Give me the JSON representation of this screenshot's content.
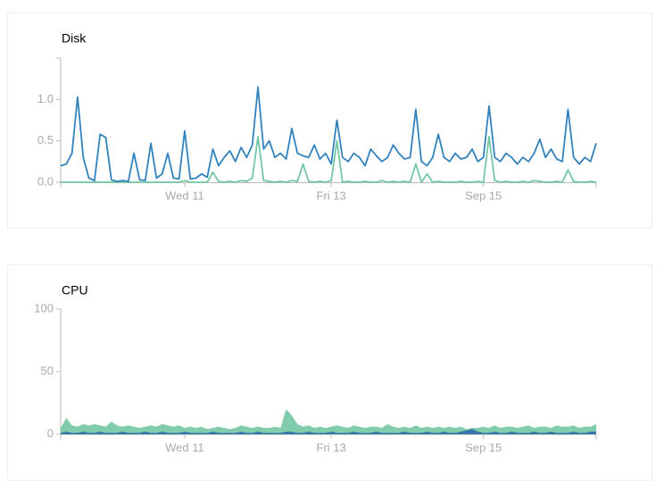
{
  "chart_data": [
    {
      "type": "line",
      "title": "Disk",
      "categories": [
        null,
        null,
        null,
        null,
        null,
        null,
        null,
        null,
        null,
        null,
        null,
        null,
        null,
        null,
        null,
        null,
        null,
        null,
        null,
        null,
        null,
        null,
        "Wed 11",
        null,
        null,
        null,
        null,
        null,
        null,
        null,
        null,
        null,
        null,
        null,
        null,
        null,
        null,
        null,
        null,
        null,
        null,
        null,
        null,
        null,
        null,
        null,
        null,
        null,
        "Fri 13",
        null,
        null,
        null,
        null,
        null,
        null,
        null,
        null,
        null,
        null,
        null,
        null,
        null,
        null,
        null,
        null,
        null,
        null,
        null,
        null,
        null,
        null,
        null,
        null,
        null,
        null,
        "Sep 15",
        null,
        null,
        null,
        null,
        null,
        null,
        null,
        null,
        null,
        null,
        null,
        null,
        null,
        null,
        null,
        null,
        null,
        null,
        null,
        null
      ],
      "series": [
        {
          "color": "#3182bd",
          "values": [
            0.2,
            0.22,
            0.35,
            1.03,
            0.3,
            0.05,
            0.02,
            0.58,
            0.54,
            0.03,
            0.01,
            0.02,
            0.01,
            0.35,
            0.03,
            0.02,
            0.47,
            0.05,
            0.1,
            0.35,
            0.05,
            0.04,
            0.62,
            0.04,
            0.05,
            0.1,
            0.06,
            0.4,
            0.2,
            0.3,
            0.38,
            0.25,
            0.42,
            0.3,
            0.45,
            1.15,
            0.4,
            0.5,
            0.3,
            0.35,
            0.28,
            0.65,
            0.35,
            0.32,
            0.3,
            0.45,
            0.28,
            0.35,
            0.22,
            0.75,
            0.3,
            0.25,
            0.35,
            0.3,
            0.2,
            0.4,
            0.32,
            0.25,
            0.3,
            0.45,
            0.35,
            0.28,
            0.3,
            0.88,
            0.25,
            0.2,
            0.3,
            0.58,
            0.3,
            0.25,
            0.35,
            0.28,
            0.3,
            0.4,
            0.25,
            0.3,
            0.92,
            0.3,
            0.25,
            0.35,
            0.3,
            0.22,
            0.3,
            0.25,
            0.35,
            0.52,
            0.3,
            0.4,
            0.28,
            0.25,
            0.88,
            0.3,
            0.22,
            0.3,
            0.25,
            0.47
          ]
        },
        {
          "color": "#74c7a5",
          "values": [
            0,
            0,
            0,
            0,
            0,
            0,
            0,
            0,
            0,
            0,
            0,
            0,
            0,
            0,
            0,
            0,
            0,
            0,
            0,
            0,
            0,
            0,
            0.02,
            0,
            0,
            0,
            0,
            0.12,
            0.01,
            0,
            0.01,
            0,
            0.02,
            0.01,
            0.05,
            0.55,
            0.02,
            0.01,
            0,
            0.01,
            0,
            0.02,
            0.01,
            0.22,
            0.01,
            0,
            0.01,
            0,
            0.02,
            0.5,
            0,
            0.01,
            0,
            0,
            0.01,
            0,
            0,
            0.02,
            0,
            0.01,
            0,
            0.01,
            0,
            0.22,
            0,
            0.1,
            0,
            0.01,
            0,
            0,
            0,
            0.01,
            0,
            0,
            0.01,
            0,
            0.55,
            0.02,
            0,
            0.01,
            0,
            0,
            0.01,
            0,
            0.02,
            0.01,
            0,
            0,
            0.01,
            0,
            0.15,
            0.01,
            0,
            0,
            0.01,
            0
          ]
        }
      ],
      "ylim": [
        0,
        1.5
      ],
      "yticks": [
        {
          "value": 0,
          "label": "0.0"
        },
        {
          "value": 0.5,
          "label": "0.5"
        },
        {
          "value": 1,
          "label": "1.0"
        }
      ]
    },
    {
      "type": "area",
      "title": "CPU",
      "categories": [
        null,
        null,
        null,
        null,
        null,
        null,
        null,
        null,
        null,
        null,
        null,
        null,
        null,
        null,
        null,
        null,
        null,
        null,
        null,
        null,
        null,
        null,
        "Wed 11",
        null,
        null,
        null,
        null,
        null,
        null,
        null,
        null,
        null,
        null,
        null,
        null,
        null,
        null,
        null,
        null,
        null,
        null,
        null,
        null,
        null,
        null,
        null,
        null,
        null,
        "Fri 13",
        null,
        null,
        null,
        null,
        null,
        null,
        null,
        null,
        null,
        null,
        null,
        null,
        null,
        null,
        null,
        null,
        null,
        null,
        null,
        null,
        null,
        null,
        null,
        null,
        null,
        null,
        "Sep 15",
        null,
        null,
        null,
        null,
        null,
        null,
        null,
        null,
        null,
        null,
        null,
        null,
        null,
        null,
        null,
        null,
        null,
        null,
        null,
        null
      ],
      "series": [
        {
          "color": "#74c7a5",
          "values": [
            5,
            13,
            7,
            6,
            8,
            7,
            8,
            7,
            6,
            10,
            7,
            6,
            7,
            6,
            5,
            6,
            7,
            6,
            8,
            7,
            6,
            7,
            5,
            6,
            5,
            6,
            4,
            5,
            6,
            5,
            4,
            5,
            7,
            6,
            5,
            6,
            5,
            5,
            6,
            5,
            20,
            15,
            8,
            6,
            7,
            5,
            6,
            5,
            6,
            7,
            6,
            5,
            7,
            6,
            5,
            6,
            6,
            5,
            8,
            6,
            5,
            6,
            5,
            7,
            5,
            6,
            5,
            6,
            5,
            6,
            5,
            6,
            4,
            5,
            5,
            6,
            5,
            7,
            5,
            6,
            6,
            5,
            6,
            7,
            5,
            6,
            6,
            5,
            7,
            6,
            6,
            7,
            5,
            6,
            6,
            8
          ]
        },
        {
          "color": "#2b6ca8",
          "values": [
            1,
            2,
            1,
            1,
            2,
            1,
            1,
            2,
            1,
            1,
            1,
            2,
            1,
            1,
            1,
            2,
            1,
            1,
            2,
            1,
            1,
            1,
            2,
            1,
            1,
            1,
            1,
            2,
            1,
            1,
            1,
            1,
            2,
            1,
            1,
            2,
            1,
            1,
            1,
            1,
            2,
            2,
            1,
            1,
            2,
            1,
            1,
            1,
            2,
            1,
            1,
            1,
            2,
            1,
            1,
            1,
            2,
            1,
            1,
            1,
            1,
            2,
            1,
            1,
            1,
            2,
            1,
            1,
            2,
            1,
            1,
            2,
            3,
            4,
            2,
            1,
            1,
            2,
            1,
            1,
            2,
            1,
            1,
            1,
            2,
            1,
            1,
            2,
            1,
            1,
            1,
            2,
            1,
            1,
            2,
            2
          ]
        }
      ],
      "ylim": [
        0,
        100
      ],
      "yticks": [
        0,
        50,
        100
      ]
    }
  ]
}
